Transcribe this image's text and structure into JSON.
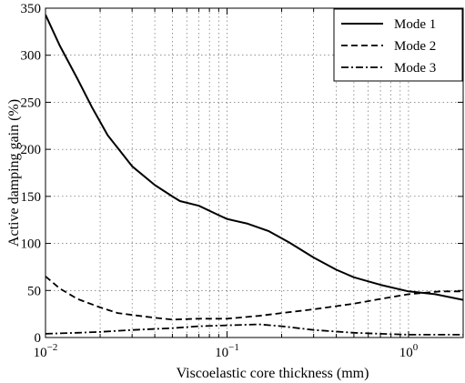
{
  "chart_data": {
    "type": "line",
    "title": "",
    "xlabel": "Viscoelastic core thickness (mm)",
    "ylabel": "Active damping gain (%)",
    "xscale": "log",
    "xlim": [
      0.01,
      2
    ],
    "ylim": [
      0,
      350
    ],
    "grid": true,
    "legend_position": "top-right",
    "x_ticks": [
      {
        "value": 0.01,
        "base": "10",
        "exp": "−2"
      },
      {
        "value": 0.1,
        "base": "10",
        "exp": "−1"
      },
      {
        "value": 1,
        "base": "10",
        "exp": "0"
      }
    ],
    "y_ticks": [
      0,
      50,
      100,
      150,
      200,
      250,
      300,
      350
    ],
    "series": [
      {
        "name": "Mode 1",
        "style": "solid",
        "x": [
          0.01,
          0.012,
          0.015,
          0.018,
          0.022,
          0.03,
          0.04,
          0.05,
          0.055,
          0.07,
          0.09,
          0.1,
          0.13,
          0.17,
          0.22,
          0.3,
          0.4,
          0.5,
          0.7,
          1.0,
          1.4,
          2.0
        ],
        "y": [
          343,
          310,
          275,
          245,
          215,
          182,
          162,
          150,
          145,
          140,
          130,
          126,
          121,
          113,
          101,
          85,
          72,
          64,
          56,
          49,
          46,
          40
        ]
      },
      {
        "name": "Mode 2",
        "style": "dashed",
        "x": [
          0.01,
          0.012,
          0.015,
          0.02,
          0.025,
          0.03,
          0.04,
          0.05,
          0.07,
          0.1,
          0.15,
          0.2,
          0.3,
          0.5,
          0.7,
          1.0,
          1.5,
          2.0
        ],
        "y": [
          65,
          52,
          41,
          32,
          26,
          24,
          21,
          19,
          20,
          20,
          23,
          26,
          30,
          36,
          41,
          46,
          49,
          49
        ]
      },
      {
        "name": "Mode 3",
        "style": "dashdot",
        "x": [
          0.01,
          0.015,
          0.02,
          0.03,
          0.05,
          0.07,
          0.1,
          0.15,
          0.2,
          0.3,
          0.5,
          0.7,
          1.0,
          1.5,
          2.0
        ],
        "y": [
          4,
          5,
          6,
          8,
          10,
          12,
          13,
          14,
          12,
          8,
          5,
          4,
          3,
          3,
          3
        ]
      }
    ]
  }
}
